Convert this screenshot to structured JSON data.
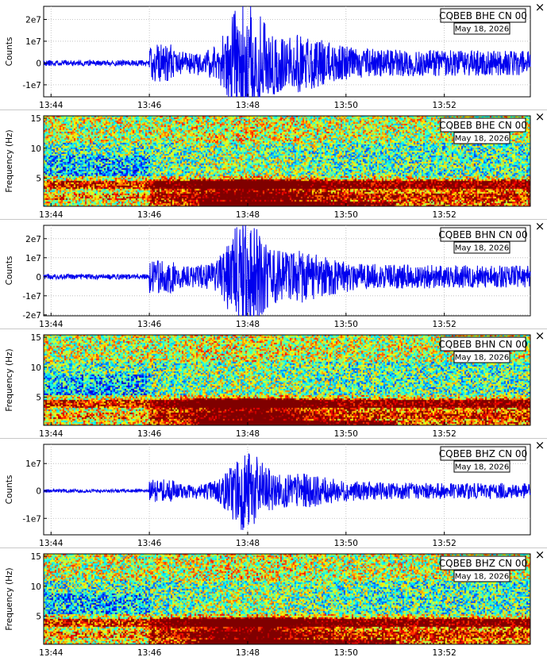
{
  "panels": [
    {
      "kind": "wave",
      "station": "CQBEB BHE CN 00",
      "date": "May 18, 2026",
      "ylabel": "Counts",
      "yticks": [
        "2e7",
        "1e7",
        "0",
        "-1e7"
      ],
      "ytick_values": [
        20000000.0,
        10000000.0,
        0,
        -10000000.0
      ],
      "ylim": [
        -15500000.0,
        26000000.0
      ],
      "amp": 1.0,
      "seed": 11,
      "close_label": "×"
    },
    {
      "kind": "spec",
      "station": "CQBEB BHE CN 00",
      "date": "May 18, 2026",
      "ylabel": "Frequency (Hz)",
      "yticks": [
        "15",
        "10",
        "5"
      ],
      "ytick_values": [
        15,
        10,
        5
      ],
      "ylim": [
        0.3,
        15.4
      ],
      "seed": 21,
      "close_label": "×"
    },
    {
      "kind": "wave",
      "station": "CQBEB BHN CN 00",
      "date": "May 18, 2026",
      "ylabel": "Counts",
      "yticks": [
        "2e7",
        "1e7",
        "0",
        "-1e7",
        "-2e7"
      ],
      "ytick_values": [
        20000000.0,
        10000000.0,
        0,
        -10000000.0,
        -20000000.0
      ],
      "ylim": [
        -20500000.0,
        27000000.0
      ],
      "amp": 1.0,
      "seed": 33,
      "close_label": "×"
    },
    {
      "kind": "spec",
      "station": "CQBEB BHN CN 00",
      "date": "May 18, 2026",
      "ylabel": "Frequency (Hz)",
      "yticks": [
        "15",
        "10",
        "5"
      ],
      "ytick_values": [
        15,
        10,
        5
      ],
      "ylim": [
        0.3,
        15.4
      ],
      "seed": 44,
      "close_label": "×"
    },
    {
      "kind": "wave",
      "station": "CQBEB BHZ CN 00",
      "date": "May 18, 2026",
      "ylabel": "Counts",
      "yticks": [
        "1e7",
        "0",
        "-1e7"
      ],
      "ytick_values": [
        10000000.0,
        0,
        -10000000.0
      ],
      "ylim": [
        -16000000.0,
        17000000.0
      ],
      "amp": 0.75,
      "seed": 55,
      "close_label": "×"
    },
    {
      "kind": "spec",
      "station": "CQBEB BHZ CN 00",
      "date": "May 18, 2026",
      "ylabel": "Frequency (Hz)",
      "yticks": [
        "15",
        "10",
        "5"
      ],
      "ytick_values": [
        15,
        10,
        5
      ],
      "ylim": [
        0.3,
        15.4
      ],
      "seed": 66,
      "close_label": "×"
    }
  ],
  "chart_data": [
    {
      "type": "line",
      "title": "CQBEB BHE CN 00",
      "subtitle": "May 18, 2026",
      "ylabel": "Counts",
      "x": [
        "13:44",
        "13:46",
        "13:48",
        "13:50",
        "13:52"
      ],
      "ylim": [
        -15500000.0,
        26000000.0
      ],
      "series": [
        {
          "values_summary": {
            "peak_time": "13:47.8",
            "peak_amplitude": 26000000.0,
            "onset": "13:46"
          }
        }
      ],
      "grid": true,
      "color": "#0000ee"
    },
    {
      "type": "heatmap",
      "title": "CQBEB BHE CN 00",
      "subtitle": "May 18, 2026",
      "ylabel": "Frequency (Hz)",
      "x": [
        "13:44",
        "13:46",
        "13:48",
        "13:50",
        "13:52"
      ],
      "ylim": [
        0,
        15
      ],
      "colormap": "jet"
    },
    {
      "type": "line",
      "title": "CQBEB BHN CN 00",
      "subtitle": "May 18, 2026",
      "ylabel": "Counts",
      "x": [
        "13:44",
        "13:46",
        "13:48",
        "13:50",
        "13:52"
      ],
      "ylim": [
        -20500000.0,
        27000000.0
      ],
      "series": [
        {
          "values_summary": {
            "peak_time": "13:47.8",
            "peak_amplitude": 27000000.0,
            "onset": "13:46"
          }
        }
      ],
      "grid": true,
      "color": "#0000ee"
    },
    {
      "type": "heatmap",
      "title": "CQBEB BHN CN 00",
      "subtitle": "May 18, 2026",
      "ylabel": "Frequency (Hz)",
      "x": [
        "13:44",
        "13:46",
        "13:48",
        "13:50",
        "13:52"
      ],
      "ylim": [
        0,
        15
      ],
      "colormap": "jet"
    },
    {
      "type": "line",
      "title": "CQBEB BHZ CN 00",
      "subtitle": "May 18, 2026",
      "ylabel": "Counts",
      "x": [
        "13:44",
        "13:46",
        "13:48",
        "13:50",
        "13:52"
      ],
      "ylim": [
        -16000000.0,
        17000000.0
      ],
      "series": [
        {
          "values_summary": {
            "peak_time": "13:47.8",
            "peak_amplitude": 17000000.0,
            "onset": "13:46"
          }
        }
      ],
      "grid": true,
      "color": "#0000ee"
    },
    {
      "type": "heatmap",
      "title": "CQBEB BHZ CN 00",
      "subtitle": "May 18, 2026",
      "ylabel": "Frequency (Hz)",
      "x": [
        "13:44",
        "13:46",
        "13:48",
        "13:50",
        "13:52"
      ],
      "ylim": [
        0,
        15
      ],
      "colormap": "jet"
    }
  ],
  "time_axis": {
    "labels": [
      "13:44",
      "13:46",
      "13:48",
      "13:50",
      "13:52"
    ],
    "minutes": [
      0,
      2,
      4,
      6,
      8
    ],
    "range_minutes": [
      -0.15,
      9.75
    ]
  },
  "colors": {
    "wave": "#0000ee",
    "grid": "#b8b8b8"
  }
}
